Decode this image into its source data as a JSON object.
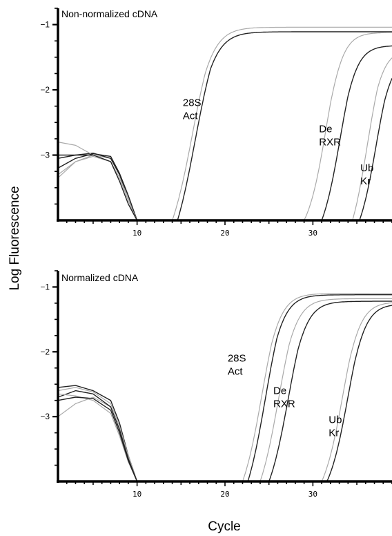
{
  "axis": {
    "ylabel": "Log Fluorescence",
    "xlabel": "Cycle"
  },
  "chart_data": [
    {
      "type": "line",
      "title": "Non-normalized cDNA",
      "xlim": [
        1,
        39
      ],
      "ylim": [
        -4.0,
        -0.75
      ],
      "xticks": [
        10,
        20,
        30
      ],
      "yticks": [
        -1,
        -2,
        -3
      ],
      "xlabel": "",
      "ylabel": "",
      "grid": false,
      "labels": [
        {
          "lines": [
            "28S",
            "Act"
          ],
          "x": 15.2,
          "y": -2.25
        },
        {
          "lines": [
            "De",
            "RXR"
          ],
          "x": 30.7,
          "y": -2.65
        },
        {
          "lines": [
            "Ub",
            "Kr"
          ],
          "x": 35.4,
          "y": -3.25
        }
      ],
      "series": [
        {
          "color": "#aaaaaa",
          "baseline_x": [
            1,
            3,
            5,
            7,
            8,
            9,
            10
          ],
          "baseline_y": [
            -3.35,
            -3.1,
            -3.0,
            -3.05,
            -3.3,
            -3.65,
            -4.0
          ],
          "onset": 14.0,
          "mid": 16.3,
          "width": 1.25,
          "plateau": -1.04
        },
        {
          "color": "#222222",
          "baseline_x": [
            1,
            3,
            5,
            7,
            8,
            9,
            10
          ],
          "baseline_y": [
            -3.0,
            -3.0,
            -2.97,
            -3.05,
            -3.3,
            -3.65,
            -4.0
          ],
          "onset": 14.6,
          "mid": 16.6,
          "width": 1.25,
          "plateau": -1.11
        },
        {
          "color": "#aaaaaa",
          "baseline_x": [
            1,
            3,
            5,
            7,
            8,
            9,
            10
          ],
          "baseline_y": [
            -2.8,
            -2.85,
            -3.0,
            -3.1,
            -3.35,
            -3.65,
            -4.0
          ],
          "onset": 29.0,
          "mid": 31.5,
          "width": 1.0,
          "plateau": -1.12
        },
        {
          "color": "#222222",
          "baseline_x": [
            1,
            3,
            5,
            7,
            8,
            9,
            10
          ],
          "baseline_y": [
            -3.2,
            -3.05,
            -2.98,
            -3.02,
            -3.28,
            -3.62,
            -4.0
          ],
          "onset": 31.0,
          "mid": 33.1,
          "width": 1.0,
          "plateau": -1.32
        },
        {
          "color": "#aaaaaa",
          "baseline_x": [
            1,
            3,
            5,
            7,
            8,
            9,
            10
          ],
          "baseline_y": [
            -3.3,
            -3.1,
            -3.02,
            -3.1,
            -3.35,
            -3.7,
            -4.0
          ],
          "onset": 34.5,
          "mid": 36.2,
          "width": 0.95,
          "plateau": -1.38
        },
        {
          "color": "#222222",
          "baseline_x": [
            1,
            3,
            5,
            7,
            8,
            9,
            10
          ],
          "baseline_y": [
            -3.05,
            -3.0,
            -3.0,
            -3.1,
            -3.4,
            -3.75,
            -4.0
          ],
          "onset": 35.3,
          "mid": 37.2,
          "width": 0.95,
          "plateau": -1.5
        }
      ]
    },
    {
      "type": "line",
      "title": "Normalized cDNA",
      "xlim": [
        1,
        39
      ],
      "ylim": [
        -4.0,
        -0.75
      ],
      "xticks": [
        10,
        20,
        30
      ],
      "yticks": [
        -1,
        -2,
        -3
      ],
      "xlabel": "",
      "ylabel": "",
      "grid": false,
      "labels": [
        {
          "lines": [
            "28S",
            "Act"
          ],
          "x": 20.3,
          "y": -2.15
        },
        {
          "lines": [
            "De",
            "RXR"
          ],
          "x": 25.5,
          "y": -2.65
        },
        {
          "lines": [
            "Ub",
            "Kr"
          ],
          "x": 31.8,
          "y": -3.1
        }
      ],
      "series": [
        {
          "color": "#aaaaaa",
          "baseline_x": [
            1,
            3,
            5,
            7,
            8,
            9,
            10
          ],
          "baseline_y": [
            -3.0,
            -2.8,
            -2.7,
            -2.85,
            -3.2,
            -3.65,
            -4.0
          ],
          "onset": 22.0,
          "mid": 24.2,
          "width": 1.1,
          "plateau": -1.1
        },
        {
          "color": "#222222",
          "baseline_x": [
            1,
            3,
            5,
            7,
            8,
            9,
            10
          ],
          "baseline_y": [
            -2.55,
            -2.52,
            -2.6,
            -2.75,
            -3.1,
            -3.6,
            -4.0
          ],
          "onset": 22.6,
          "mid": 24.6,
          "width": 1.1,
          "plateau": -1.12
        },
        {
          "color": "#aaaaaa",
          "baseline_x": [
            1,
            3,
            5,
            7,
            8,
            9,
            10
          ],
          "baseline_y": [
            -2.6,
            -2.55,
            -2.62,
            -2.8,
            -3.15,
            -3.6,
            -4.0
          ],
          "onset": 24.0,
          "mid": 26.1,
          "width": 1.1,
          "plateau": -1.18
        },
        {
          "color": "#222222",
          "baseline_x": [
            1,
            3,
            5,
            7,
            8,
            9,
            10
          ],
          "baseline_y": [
            -2.7,
            -2.6,
            -2.65,
            -2.85,
            -3.2,
            -3.65,
            -4.0
          ],
          "onset": 25.0,
          "mid": 27.2,
          "width": 1.1,
          "plateau": -1.22
        },
        {
          "color": "#aaaaaa",
          "baseline_x": [
            1,
            3,
            5,
            7,
            8,
            9,
            10
          ],
          "baseline_y": [
            -2.65,
            -2.68,
            -2.75,
            -2.95,
            -3.3,
            -3.7,
            -4.0
          ],
          "onset": 31.0,
          "mid": 33.4,
          "width": 1.05,
          "plateau": -1.23
        },
        {
          "color": "#222222",
          "baseline_x": [
            1,
            3,
            5,
            7,
            8,
            9,
            10
          ],
          "baseline_y": [
            -2.75,
            -2.7,
            -2.72,
            -2.9,
            -3.25,
            -3.68,
            -4.0
          ],
          "onset": 31.6,
          "mid": 34.0,
          "width": 1.05,
          "plateau": -1.26
        }
      ]
    }
  ]
}
